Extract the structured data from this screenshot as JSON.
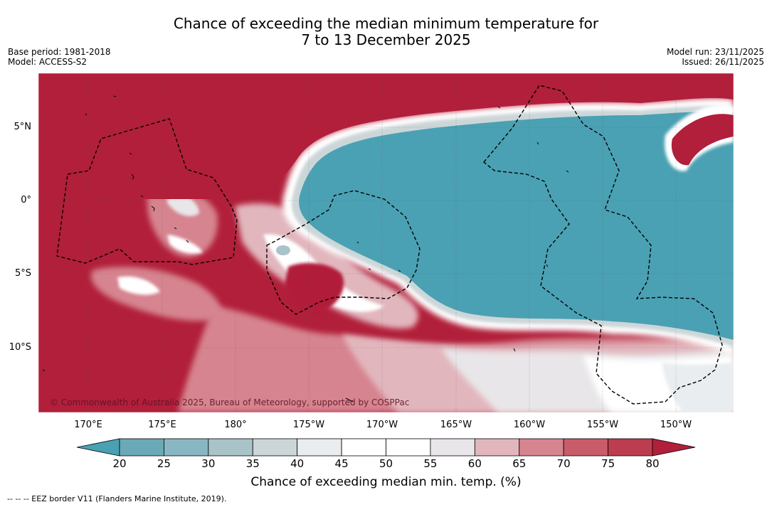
{
  "title": {
    "line1": "Chance of exceeding the median minimum temperature for",
    "line2": "7 to 13 December 2025"
  },
  "meta_left": {
    "base_period": "Base period: 1981-2018",
    "model": "Model: ACCESS-S2"
  },
  "meta_right": {
    "model_run": "Model run: 23/11/2025",
    "issued": "Issued: 26/11/2025"
  },
  "axes": {
    "lat_labels": [
      "5°N",
      "0°",
      "5°S",
      "10°S"
    ],
    "lon_labels": [
      "170°E",
      "175°E",
      "180°",
      "175°W",
      "170°W",
      "165°W",
      "160°W",
      "155°W",
      "150°W"
    ]
  },
  "copyright": "© Commonwealth of Australia 2025, Bureau of Meteorology, supported by COSPPac",
  "colorbar": {
    "ticks": [
      "20",
      "25",
      "30",
      "35",
      "40",
      "45",
      "50",
      "55",
      "60",
      "65",
      "70",
      "75",
      "80"
    ],
    "colors": [
      "#4aa1b3",
      "#6aa9b7",
      "#88b7c3",
      "#a9c3c8",
      "#ccd6d8",
      "#e9edf0",
      "#ffffff",
      "#ffffff",
      "#e8e6e8",
      "#e2b6bd",
      "#d6848f",
      "#c85c6b",
      "#bd3d50",
      "#b21f3a"
    ],
    "label": "Chance of exceeding median min. temp. (%)"
  },
  "footnote": "--  --  -- EEZ border V11 (Flanders Marine Institute, 2019)."
}
